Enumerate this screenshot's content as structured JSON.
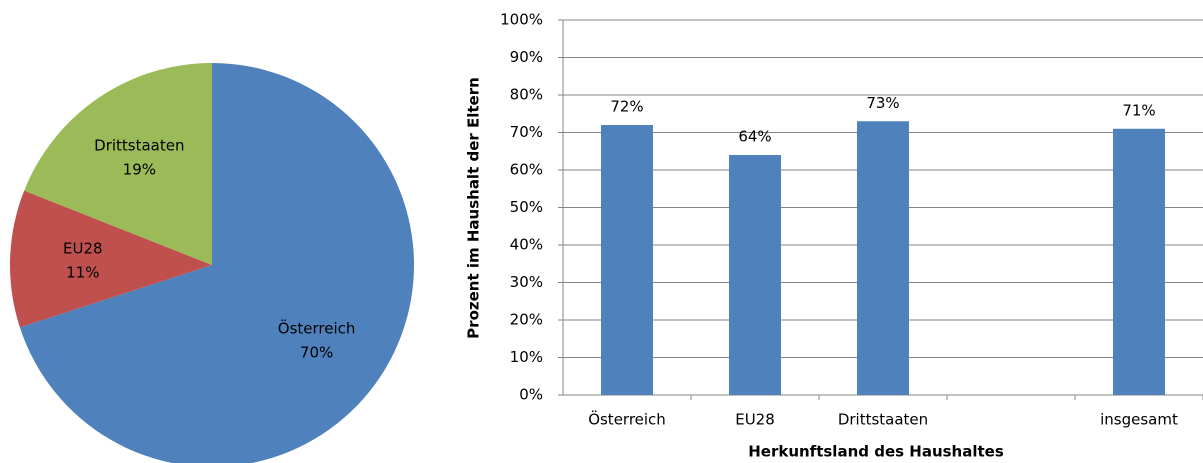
{
  "chart_data": [
    {
      "type": "pie",
      "categories": [
        "Österreich",
        "EU28",
        "Drittstaaten"
      ],
      "values": [
        70,
        11,
        19
      ],
      "value_labels": [
        "70%",
        "11%",
        "19%"
      ],
      "colors": [
        "#4f81bd",
        "#c0504d",
        "#9bbb59"
      ]
    },
    {
      "type": "bar",
      "categories": [
        "Österreich",
        "EU28",
        "Drittstaaten",
        null,
        "insgesamt"
      ],
      "values": [
        72,
        64,
        73,
        null,
        71
      ],
      "value_labels": [
        "72%",
        "64%",
        "73%",
        null,
        "71%"
      ],
      "color": "#4f81bd",
      "ylabel": "Prozent im Haushalt der Eltern",
      "xlabel": "Herkunftsland des Haushaltes",
      "ylim": [
        0,
        100
      ],
      "yticks": [
        {
          "value": 0,
          "label": "0%"
        },
        {
          "value": 10,
          "label": "10%"
        },
        {
          "value": 20,
          "label": "20%"
        },
        {
          "value": 30,
          "label": "30%"
        },
        {
          "value": 40,
          "label": "40%"
        },
        {
          "value": 50,
          "label": "50%"
        },
        {
          "value": 60,
          "label": "60%"
        },
        {
          "value": 70,
          "label": "70%"
        },
        {
          "value": 80,
          "label": "80%"
        },
        {
          "value": 90,
          "label": "90%"
        },
        {
          "value": 100,
          "label": "100%"
        }
      ],
      "grid": true
    }
  ]
}
